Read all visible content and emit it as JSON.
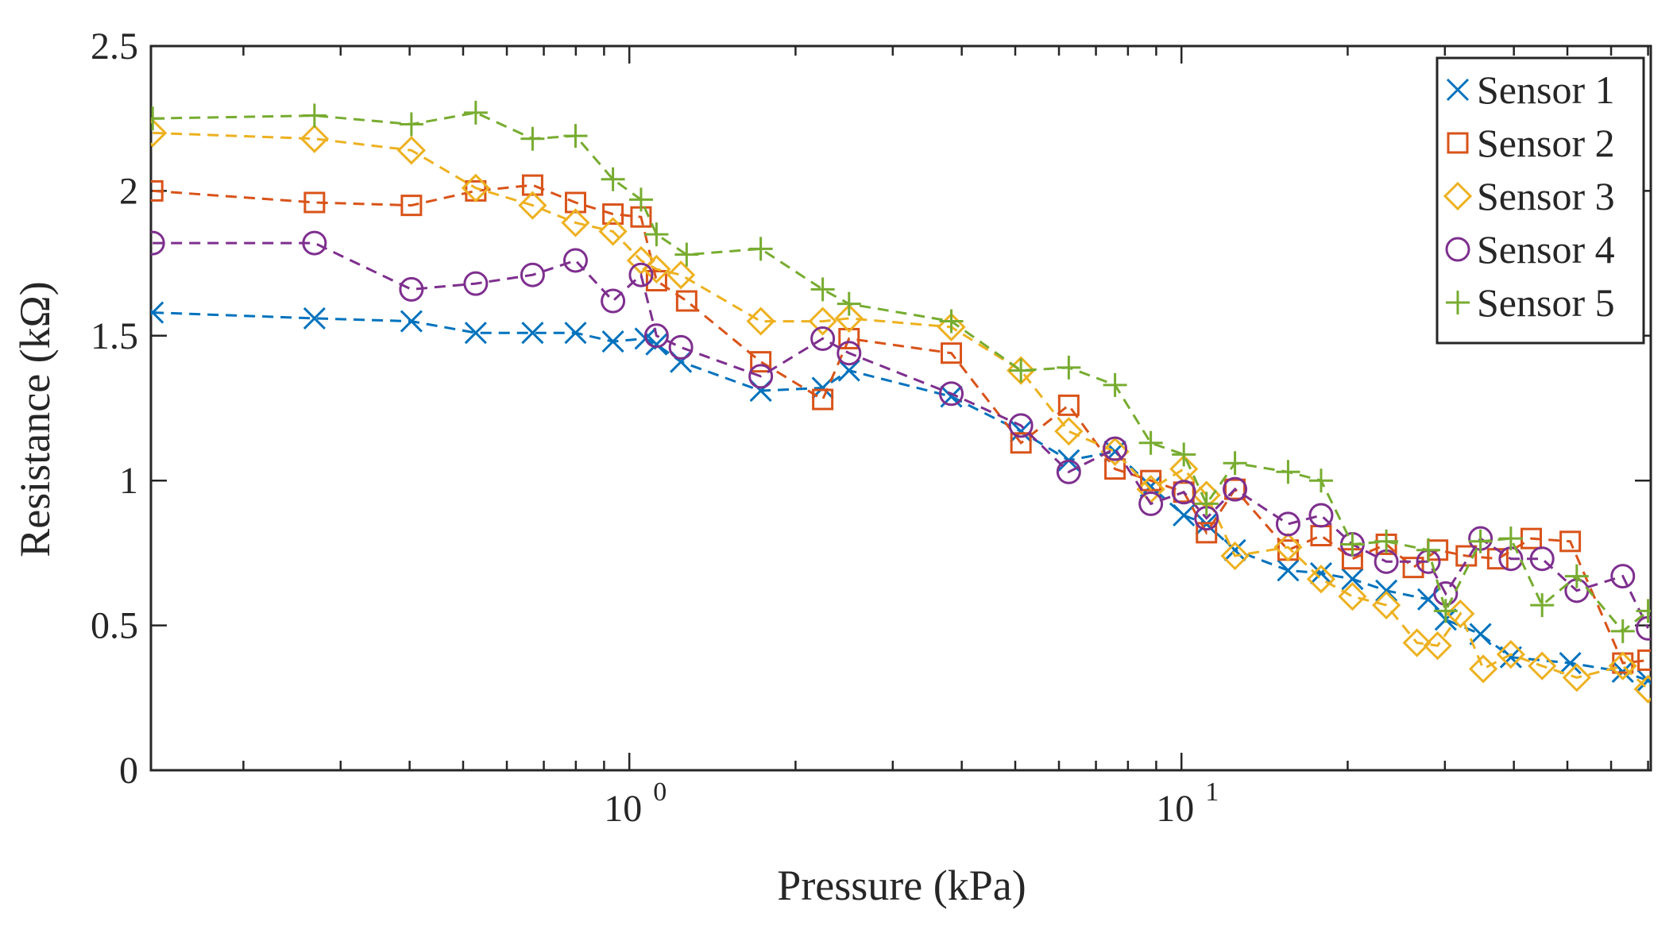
{
  "chart_data": {
    "type": "line",
    "xlabel": "Pressure (kPa)",
    "ylabel": "Resistance (kΩ)",
    "xscale": "log",
    "xlim": [
      0.136,
      70.8
    ],
    "ylim": [
      0,
      2.5
    ],
    "x_ticks": [
      {
        "value": 1,
        "base": "10",
        "exp": "0"
      },
      {
        "value": 10,
        "base": "10",
        "exp": "1"
      }
    ],
    "y_ticks": [
      "0",
      "0.5",
      "1",
      "1.5",
      "2",
      "2.5"
    ],
    "y_tick_values": [
      0,
      0.5,
      1,
      1.5,
      2,
      2.5
    ],
    "grid": false,
    "line_style": "dashed",
    "legend_position": "top-right",
    "series": [
      {
        "name": "Sensor 1",
        "color": "#0072BD",
        "marker": "x",
        "x": [
          0.137,
          0.269,
          0.403,
          0.527,
          0.668,
          0.799,
          0.934,
          1.07,
          1.12,
          1.24,
          1.73,
          2.24,
          2.5,
          3.83,
          5.12,
          6.25,
          7.58,
          8.8,
          10.1,
          11.1,
          12.5,
          15.6,
          17.9,
          20.4,
          23.5,
          28.0,
          30.1,
          34.8,
          39.5,
          50.6,
          63.0,
          70.0
        ],
        "y": [
          1.58,
          1.56,
          1.55,
          1.51,
          1.51,
          1.51,
          1.48,
          1.49,
          1.47,
          1.41,
          1.31,
          1.32,
          1.38,
          1.29,
          1.17,
          1.07,
          1.1,
          0.98,
          0.88,
          0.85,
          0.76,
          0.69,
          0.68,
          0.66,
          0.62,
          0.59,
          0.52,
          0.47,
          0.39,
          0.37,
          0.34,
          0.31
        ]
      },
      {
        "name": "Sensor 2",
        "color": "#D95319",
        "marker": "square",
        "x": [
          0.137,
          0.269,
          0.403,
          0.527,
          0.668,
          0.799,
          0.934,
          1.05,
          1.12,
          1.27,
          1.73,
          2.24,
          2.5,
          3.83,
          5.12,
          6.25,
          7.58,
          8.8,
          10.1,
          11.1,
          12.5,
          15.6,
          17.9,
          20.4,
          23.5,
          26.3,
          29.1,
          32.8,
          37.4,
          43.0,
          50.6,
          63.0,
          70.0
        ],
        "y": [
          2.0,
          1.96,
          1.95,
          2.0,
          2.02,
          1.96,
          1.92,
          1.91,
          1.69,
          1.62,
          1.41,
          1.28,
          1.49,
          1.44,
          1.13,
          1.26,
          1.04,
          1.0,
          0.96,
          0.82,
          0.97,
          0.76,
          0.81,
          0.73,
          0.78,
          0.7,
          0.76,
          0.74,
          0.73,
          0.8,
          0.79,
          0.37,
          0.38
        ]
      },
      {
        "name": "Sensor 3",
        "color": "#EDB120",
        "marker": "diamond",
        "x": [
          0.137,
          0.269,
          0.403,
          0.527,
          0.668,
          0.799,
          0.934,
          1.05,
          1.12,
          1.24,
          1.73,
          2.24,
          2.5,
          3.83,
          5.12,
          6.25,
          7.58,
          8.8,
          10.1,
          11.1,
          12.5,
          15.6,
          17.9,
          20.4,
          23.5,
          26.7,
          29.1,
          32.0,
          35.2,
          39.5,
          45.0,
          52.0,
          63.0,
          70.0
        ],
        "y": [
          2.2,
          2.18,
          2.14,
          2.01,
          1.95,
          1.89,
          1.86,
          1.76,
          1.73,
          1.71,
          1.55,
          1.55,
          1.56,
          1.53,
          1.38,
          1.17,
          1.1,
          0.97,
          1.04,
          0.95,
          0.74,
          0.77,
          0.66,
          0.6,
          0.57,
          0.44,
          0.43,
          0.54,
          0.35,
          0.4,
          0.36,
          0.32,
          0.36,
          0.28
        ]
      },
      {
        "name": "Sensor 4",
        "color": "#7E2F8E",
        "marker": "circle",
        "x": [
          0.137,
          0.269,
          0.403,
          0.527,
          0.668,
          0.799,
          0.934,
          1.05,
          1.12,
          1.24,
          1.73,
          2.24,
          2.5,
          3.83,
          5.12,
          6.25,
          7.58,
          8.8,
          10.1,
          11.1,
          12.5,
          15.6,
          17.9,
          20.4,
          23.5,
          28.0,
          30.1,
          34.8,
          39.5,
          45.0,
          52.0,
          63.0,
          70.0
        ],
        "y": [
          1.82,
          1.82,
          1.66,
          1.68,
          1.71,
          1.76,
          1.62,
          1.71,
          1.5,
          1.46,
          1.36,
          1.49,
          1.44,
          1.3,
          1.19,
          1.03,
          1.11,
          0.92,
          0.96,
          0.87,
          0.97,
          0.85,
          0.88,
          0.78,
          0.72,
          0.72,
          0.61,
          0.8,
          0.73,
          0.73,
          0.62,
          0.67,
          0.49
        ]
      },
      {
        "name": "Sensor 5",
        "color": "#77AC30",
        "marker": "plus",
        "x": [
          0.137,
          0.269,
          0.403,
          0.527,
          0.668,
          0.799,
          0.934,
          1.05,
          1.12,
          1.27,
          1.73,
          2.24,
          2.5,
          3.83,
          5.12,
          6.25,
          7.58,
          8.8,
          10.1,
          11.1,
          12.5,
          15.6,
          17.9,
          20.4,
          23.5,
          28.0,
          30.1,
          34.8,
          39.5,
          45.0,
          52.0,
          63.0,
          70.0
        ],
        "y": [
          2.25,
          2.26,
          2.23,
          2.27,
          2.18,
          2.19,
          2.04,
          1.97,
          1.85,
          1.78,
          1.8,
          1.66,
          1.61,
          1.55,
          1.38,
          1.39,
          1.33,
          1.13,
          1.09,
          0.92,
          1.06,
          1.03,
          1.0,
          0.78,
          0.79,
          0.76,
          0.55,
          0.79,
          0.8,
          0.57,
          0.67,
          0.48,
          0.55
        ]
      }
    ]
  }
}
